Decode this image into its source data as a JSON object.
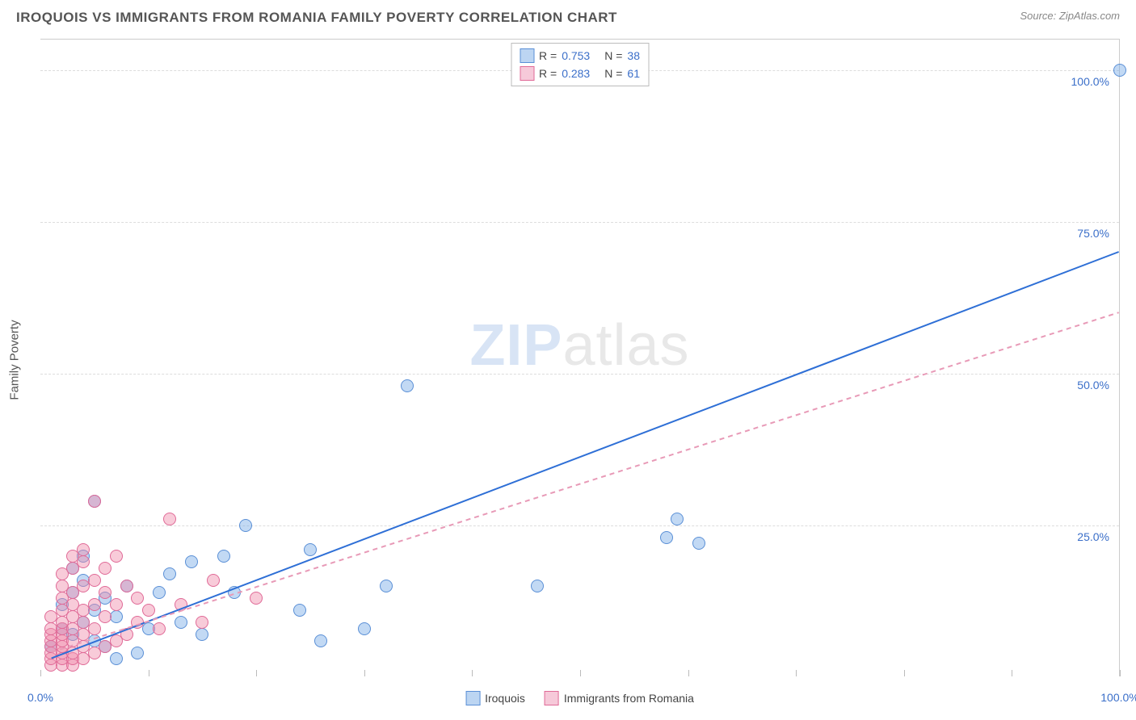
{
  "header": {
    "title": "IROQUOIS VS IMMIGRANTS FROM ROMANIA FAMILY POVERTY CORRELATION CHART",
    "source": "Source: ZipAtlas.com"
  },
  "watermark": {
    "part1": "ZIP",
    "part2": "atlas"
  },
  "yaxis": {
    "title": "Family Poverty"
  },
  "chart": {
    "type": "scatter",
    "xlim": [
      0,
      100
    ],
    "ylim": [
      0,
      105
    ],
    "grid_color": "#dddddd",
    "background_color": "#ffffff",
    "yticks": [
      {
        "v": 25,
        "label": "25.0%"
      },
      {
        "v": 50,
        "label": "50.0%"
      },
      {
        "v": 75,
        "label": "75.0%"
      },
      {
        "v": 100,
        "label": "100.0%"
      }
    ],
    "xticks_minor": [
      0,
      10,
      20,
      30,
      40,
      50,
      60,
      70,
      80,
      90,
      100
    ],
    "xticks_labeled": [
      {
        "v": 0,
        "label": "0.0%"
      },
      {
        "v": 100,
        "label": "100.0%"
      }
    ],
    "marker_radius": 8,
    "marker_stroke_width": 1.2,
    "trend_line_width": 2
  },
  "series": [
    {
      "key": "iroquois",
      "name": "Iroquois",
      "color_fill": "rgba(120,170,230,0.45)",
      "color_stroke": "#5a8fd6",
      "swatch_fill": "#bcd5f2",
      "swatch_border": "#5a8fd6",
      "r": "0.753",
      "n": "38",
      "trend": {
        "x1": 1,
        "y1": 3,
        "x2": 100,
        "y2": 70,
        "dash": "none",
        "stroke": "#2e6fd6"
      },
      "points": [
        [
          1,
          5
        ],
        [
          2,
          8
        ],
        [
          2,
          12
        ],
        [
          3,
          7
        ],
        [
          3,
          14
        ],
        [
          3,
          18
        ],
        [
          4,
          9
        ],
        [
          4,
          16
        ],
        [
          4,
          20
        ],
        [
          5,
          6
        ],
        [
          5,
          11
        ],
        [
          5,
          29
        ],
        [
          6,
          5
        ],
        [
          6,
          13
        ],
        [
          7,
          3
        ],
        [
          7,
          10
        ],
        [
          8,
          15
        ],
        [
          9,
          4
        ],
        [
          10,
          8
        ],
        [
          11,
          14
        ],
        [
          12,
          17
        ],
        [
          13,
          9
        ],
        [
          14,
          19
        ],
        [
          15,
          7
        ],
        [
          17,
          20
        ],
        [
          18,
          14
        ],
        [
          19,
          25
        ],
        [
          24,
          11
        ],
        [
          25,
          21
        ],
        [
          26,
          6
        ],
        [
          30,
          8
        ],
        [
          32,
          15
        ],
        [
          34,
          48
        ],
        [
          46,
          15
        ],
        [
          58,
          23
        ],
        [
          59,
          26
        ],
        [
          61,
          22
        ],
        [
          100,
          100
        ]
      ]
    },
    {
      "key": "romania",
      "name": "Immigrants from Romania",
      "color_fill": "rgba(240,140,170,0.45)",
      "color_stroke": "#e06a97",
      "swatch_fill": "#f6c9d9",
      "swatch_border": "#e06a97",
      "r": "0.283",
      "n": "61",
      "trend": {
        "x1": 1,
        "y1": 4,
        "x2": 100,
        "y2": 60,
        "dash": "6,5",
        "stroke": "#e89ab7"
      },
      "points": [
        [
          1,
          2
        ],
        [
          1,
          3
        ],
        [
          1,
          4
        ],
        [
          1,
          5
        ],
        [
          1,
          6
        ],
        [
          1,
          7
        ],
        [
          1,
          8
        ],
        [
          1,
          10
        ],
        [
          2,
          2
        ],
        [
          2,
          3
        ],
        [
          2,
          4
        ],
        [
          2,
          5
        ],
        [
          2,
          6
        ],
        [
          2,
          7
        ],
        [
          2,
          8
        ],
        [
          2,
          9
        ],
        [
          2,
          11
        ],
        [
          2,
          13
        ],
        [
          2,
          15
        ],
        [
          2,
          17
        ],
        [
          3,
          2
        ],
        [
          3,
          3
        ],
        [
          3,
          4
        ],
        [
          3,
          6
        ],
        [
          3,
          8
        ],
        [
          3,
          10
        ],
        [
          3,
          12
        ],
        [
          3,
          14
        ],
        [
          3,
          18
        ],
        [
          3,
          20
        ],
        [
          4,
          3
        ],
        [
          4,
          5
        ],
        [
          4,
          7
        ],
        [
          4,
          9
        ],
        [
          4,
          11
        ],
        [
          4,
          15
        ],
        [
          4,
          19
        ],
        [
          4,
          21
        ],
        [
          5,
          4
        ],
        [
          5,
          8
        ],
        [
          5,
          12
        ],
        [
          5,
          16
        ],
        [
          5,
          29
        ],
        [
          6,
          5
        ],
        [
          6,
          10
        ],
        [
          6,
          14
        ],
        [
          6,
          18
        ],
        [
          7,
          6
        ],
        [
          7,
          12
        ],
        [
          7,
          20
        ],
        [
          8,
          7
        ],
        [
          8,
          15
        ],
        [
          9,
          9
        ],
        [
          9,
          13
        ],
        [
          10,
          11
        ],
        [
          11,
          8
        ],
        [
          12,
          26
        ],
        [
          13,
          12
        ],
        [
          15,
          9
        ],
        [
          16,
          16
        ],
        [
          20,
          13
        ]
      ]
    }
  ],
  "legend_bottom": {
    "items": [
      {
        "label": "Iroquois",
        "series": "iroquois"
      },
      {
        "label": "Immigrants from Romania",
        "series": "romania"
      }
    ]
  }
}
